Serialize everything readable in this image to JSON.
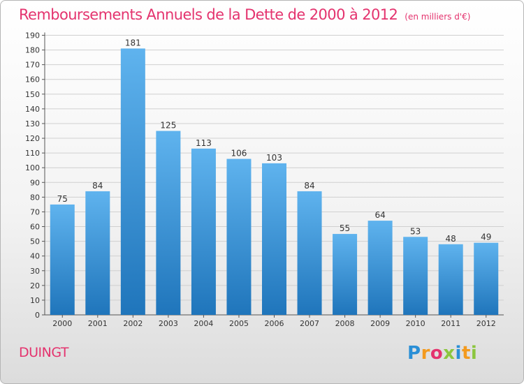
{
  "title": "Remboursements Annuels de la Dette de 2000 à 2012",
  "unit_note": "(en milliers d'€)",
  "commune": "DUINGT",
  "logo": {
    "letters": [
      "P",
      "r",
      "o",
      "x",
      "i",
      "t",
      "i"
    ],
    "colors": [
      "#2a8fd6",
      "#f39a1e",
      "#e4336e",
      "#8cc63f",
      "#2a8fd6",
      "#f39a1e",
      "#8cc63f"
    ]
  },
  "colors": {
    "title": "#e4336e",
    "bar_top": "#5fb3ee",
    "bar_bottom": "#1f75bb",
    "grid": "#d0d0d0",
    "axis": "#555555"
  },
  "chart_data": {
    "type": "bar",
    "categories": [
      "2000",
      "2001",
      "2002",
      "2003",
      "2004",
      "2005",
      "2006",
      "2007",
      "2008",
      "2009",
      "2010",
      "2011",
      "2012"
    ],
    "values": [
      75,
      84,
      181,
      125,
      113,
      106,
      103,
      84,
      55,
      64,
      53,
      48,
      49
    ],
    "ylim": [
      0,
      190
    ],
    "ytick_step": 10,
    "grid": true,
    "xlabel": "",
    "ylabel": ""
  }
}
